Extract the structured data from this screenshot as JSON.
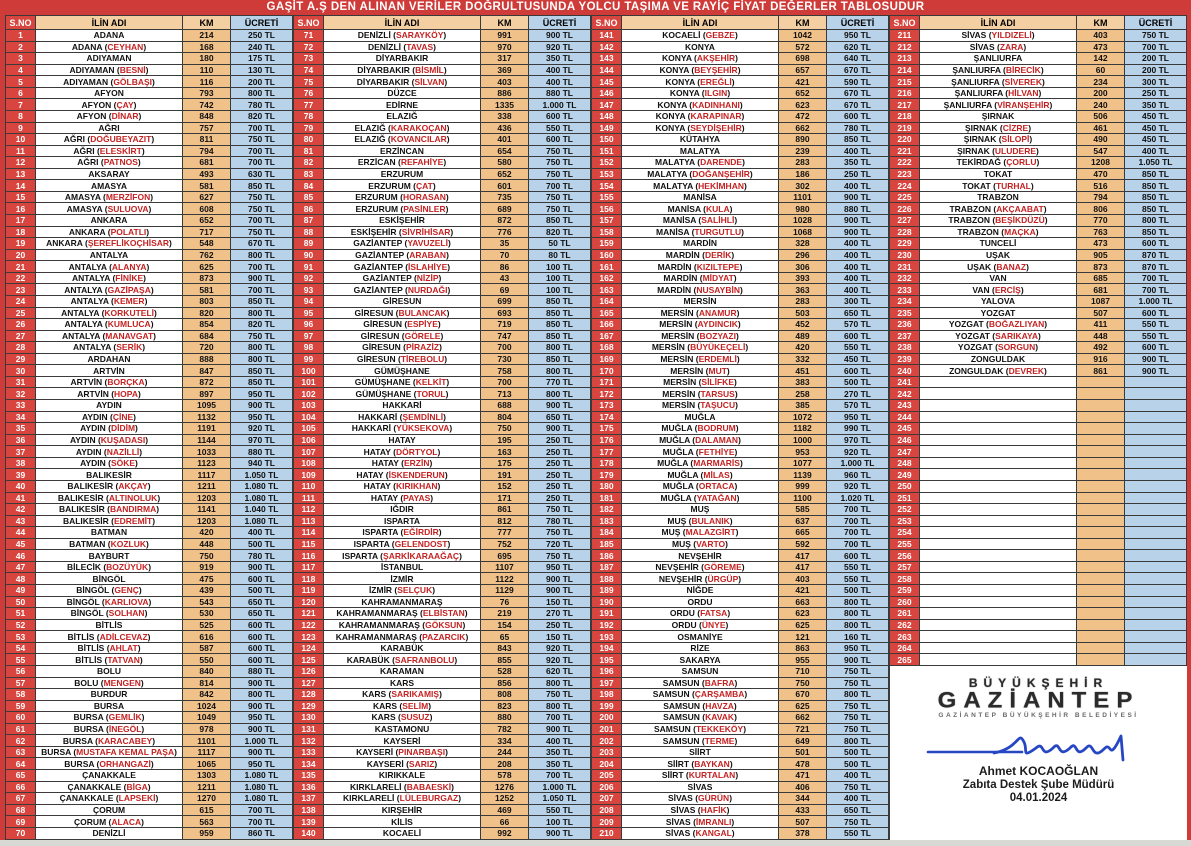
{
  "title": "GAŞİT A.Ş DEN ALINAN VERİLER DOĞRULTUSUNDA YOLCU TAŞIMA VE RAYİÇ FİYAT DEĞERLER TABLOSUDUR",
  "headers": [
    "S.NO",
    "İLİN ADI",
    "KM",
    "ÜCRETİ"
  ],
  "empty_rows": {
    "from": 241,
    "to": 265
  },
  "colors": {
    "frame_red": "#ce3b38",
    "sno_red": "#d8453e",
    "km_peach": "#f0c189",
    "fare_blue": "#b7d2e9",
    "header_peach": "#f3cfa2",
    "district_red": "#c42222",
    "signature_blue": "#2746c4"
  },
  "signature": {
    "stamp_line1": "BÜYÜKŞEHİR",
    "stamp_line2": "GAZİANTEP",
    "stamp_line3": "GAZİANTEP BÜYÜKŞEHİR BELEDİYESİ",
    "name": "Ahmet KOCAOĞLAN",
    "role": "Zabıta Destek Şube Müdürü",
    "date": "04.01.2024"
  },
  "rows": [
    [
      1,
      "ADANA",
      214,
      "250 TL"
    ],
    [
      2,
      "ADANA (CEYHAN)",
      168,
      "240 TL"
    ],
    [
      3,
      "ADIYAMAN",
      180,
      "175 TL"
    ],
    [
      4,
      "ADIYAMAN (BESNİ)",
      110,
      "130 TL"
    ],
    [
      5,
      "ADIYAMAN (GÖLBAŞI)",
      116,
      "200 TL"
    ],
    [
      6,
      "AFYON",
      793,
      "800 TL"
    ],
    [
      7,
      "AFYON (ÇAY)",
      742,
      "780 TL"
    ],
    [
      8,
      "AFYON (DİNAR)",
      848,
      "820 TL"
    ],
    [
      9,
      "AĞRI",
      757,
      "700 TL"
    ],
    [
      10,
      "AĞRI (DOĞUBEYAZIT)",
      811,
      "750 TL"
    ],
    [
      11,
      "AĞRI (ELESKİRT)",
      794,
      "700 TL"
    ],
    [
      12,
      "AĞRI (PATNOS)",
      681,
      "700 TL"
    ],
    [
      13,
      "AKSARAY",
      493,
      "630 TL"
    ],
    [
      14,
      "AMASYA",
      581,
      "850 TL"
    ],
    [
      15,
      "AMASYA (MERZİFON)",
      627,
      "750 TL"
    ],
    [
      16,
      "AMASYA (SULUOVA)",
      608,
      "750 TL"
    ],
    [
      17,
      "ANKARA",
      652,
      "700 TL"
    ],
    [
      18,
      "ANKARA (POLATLI)",
      717,
      "750 TL"
    ],
    [
      19,
      "ANKARA (ŞEREFLİKOÇHİSAR)",
      548,
      "670 TL"
    ],
    [
      20,
      "ANTALYA",
      762,
      "800 TL"
    ],
    [
      21,
      "ANTALYA (ALANYA)",
      625,
      "700 TL"
    ],
    [
      22,
      "ANTALYA (FİNİKE)",
      873,
      "900 TL"
    ],
    [
      23,
      "ANTALYA (GAZİPAŞA)",
      581,
      "700 TL"
    ],
    [
      24,
      "ANTALYA (KEMER)",
      803,
      "850 TL"
    ],
    [
      25,
      "ANTALYA (KORKUTELİ)",
      820,
      "800 TL"
    ],
    [
      26,
      "ANTALYA (KUMLUCA)",
      854,
      "820 TL"
    ],
    [
      27,
      "ANTALYA (MANAVGAT)",
      684,
      "750 TL"
    ],
    [
      28,
      "ANTALYA (SERİK)",
      720,
      "800 TL"
    ],
    [
      29,
      "ARDAHAN",
      888,
      "800 TL"
    ],
    [
      30,
      "ARTVİN",
      847,
      "850 TL"
    ],
    [
      31,
      "ARTVİN (BORÇKA)",
      872,
      "850 TL"
    ],
    [
      32,
      "ARTVİN (HOPA)",
      897,
      "950 TL"
    ],
    [
      33,
      "AYDIN",
      1095,
      "900 TL"
    ],
    [
      34,
      "AYDIN (ÇİNE)",
      1132,
      "950 TL"
    ],
    [
      35,
      "AYDIN (DİDİM)",
      1191,
      "920 TL"
    ],
    [
      36,
      "AYDIN (KUŞADASI)",
      1144,
      "970 TL"
    ],
    [
      37,
      "AYDIN (NAZİLLİ)",
      1033,
      "880 TL"
    ],
    [
      38,
      "AYDIN (SÖKE)",
      1123,
      "940 TL"
    ],
    [
      39,
      "BALIKESİR",
      1117,
      "1.050 TL"
    ],
    [
      40,
      "BALIKESİR (AKÇAY)",
      1211,
      "1.080 TL"
    ],
    [
      41,
      "BALIKESİR (ALTINOLUK)",
      1203,
      "1.080 TL"
    ],
    [
      42,
      "BALIKESİR (BANDIRMA)",
      1141,
      "1.040 TL"
    ],
    [
      43,
      "BALIKESİR (EDREMİT)",
      1203,
      "1.080 TL"
    ],
    [
      44,
      "BATMAN",
      420,
      "400 TL"
    ],
    [
      45,
      "BATMAN (KOZLUK)",
      448,
      "500 TL"
    ],
    [
      46,
      "BAYBURT",
      750,
      "780 TL"
    ],
    [
      47,
      "BİLECİK (BOZÜYÜK)",
      919,
      "900 TL"
    ],
    [
      48,
      "BİNGÖL",
      475,
      "600 TL"
    ],
    [
      49,
      "BİNGÖL (GENÇ)",
      439,
      "500 TL"
    ],
    [
      50,
      "BİNGÖL (KARLIOVA)",
      543,
      "650 TL"
    ],
    [
      51,
      "BİNGÖL (SOLHAN)",
      530,
      "650 TL"
    ],
    [
      52,
      "BİTLİS",
      525,
      "600 TL"
    ],
    [
      53,
      "BİTLİS (ADİLCEVAZ)",
      616,
      "600 TL"
    ],
    [
      54,
      "BİTLİS (AHLAT)",
      587,
      "600 TL"
    ],
    [
      55,
      "BİTLİS (TATVAN)",
      550,
      "600 TL"
    ],
    [
      56,
      "BOLU",
      840,
      "880 TL"
    ],
    [
      57,
      "BOLU (MENGEN)",
      814,
      "900 TL"
    ],
    [
      58,
      "BURDUR",
      842,
      "800 TL"
    ],
    [
      59,
      "BURSA",
      1024,
      "900 TL"
    ],
    [
      60,
      "BURSA (GEMLİK)",
      1049,
      "950 TL"
    ],
    [
      61,
      "BURSA (İNEGÖL)",
      978,
      "900 TL"
    ],
    [
      62,
      "BURSA (KARACABEY)",
      1101,
      "1.000 TL"
    ],
    [
      63,
      "BURSA (MUSTAFA KEMAL PAŞA)",
      1117,
      "900 TL"
    ],
    [
      64,
      "BURSA (ORHANGAZİ)",
      1065,
      "950 TL"
    ],
    [
      65,
      "ÇANAKKALE",
      1303,
      "1.080 TL"
    ],
    [
      66,
      "ÇANAKKALE (BİGA)",
      1211,
      "1.080 TL"
    ],
    [
      67,
      "ÇANAKKALE (LAPSEKİ)",
      1270,
      "1.080 TL"
    ],
    [
      68,
      "ÇORUM",
      615,
      "700 TL"
    ],
    [
      69,
      "ÇORUM (ALACA)",
      563,
      "700 TL"
    ],
    [
      70,
      "DENİZLİ",
      959,
      "860 TL"
    ],
    [
      71,
      "DENİZLİ (SARAYKÖY)",
      991,
      "900 TL"
    ],
    [
      72,
      "DENİZLİ (TAVAS)",
      970,
      "920 TL"
    ],
    [
      73,
      "DİYARBAKIR",
      317,
      "350 TL"
    ],
    [
      74,
      "DİYARBAKIR (BİSMİL)",
      369,
      "400 TL"
    ],
    [
      75,
      "DİYARBAKIR (SİLVAN)",
      403,
      "400 TL"
    ],
    [
      76,
      "DÜZCE",
      886,
      "880 TL"
    ],
    [
      77,
      "EDİRNE",
      1335,
      "1.000 TL"
    ],
    [
      78,
      "ELAZIĞ",
      338,
      "600 TL"
    ],
    [
      79,
      "ELAZIĞ (KARAKOÇAN)",
      436,
      "550 TL"
    ],
    [
      80,
      "ELAZIĞ (KOVANCILAR)",
      401,
      "600 TL"
    ],
    [
      81,
      "ERZİNCAN",
      654,
      "750 TL"
    ],
    [
      82,
      "ERZİCAN (REFAHİYE)",
      580,
      "750 TL"
    ],
    [
      83,
      "ERZURUM",
      652,
      "750 TL"
    ],
    [
      84,
      "ERZURUM (ÇAT)",
      601,
      "700 TL"
    ],
    [
      85,
      "ERZURUM (HORASAN)",
      735,
      "750 TL"
    ],
    [
      86,
      "ERZURUM (PASİNLER)",
      689,
      "750 TL"
    ],
    [
      87,
      "ESKİŞEHİR",
      872,
      "850 TL"
    ],
    [
      88,
      "ESKİŞEHİR (SİVRİHİSAR)",
      776,
      "820 TL"
    ],
    [
      89,
      "GAZİANTEP (YAVUZELİ)",
      35,
      "50 TL"
    ],
    [
      90,
      "GAZİANTEP (ARABAN)",
      70,
      "80 TL"
    ],
    [
      91,
      "GAZİANTEP (İSLAHİYE)",
      86,
      "100 TL"
    ],
    [
      92,
      "GAZİANTEP (NİZİP)",
      43,
      "100 TL"
    ],
    [
      93,
      "GAZİANTEP (NURDAĞI)",
      69,
      "100 TL"
    ],
    [
      94,
      "GİRESUN",
      699,
      "850 TL"
    ],
    [
      95,
      "GİRESUN (BULANCAK)",
      693,
      "850 TL"
    ],
    [
      96,
      "GİRESUN (ESPİYE)",
      719,
      "850 TL"
    ],
    [
      97,
      "GİRESUN (GÖRELE)",
      747,
      "850 TL"
    ],
    [
      98,
      "GİRESUN (PİRAZİZ)",
      700,
      "800 TL"
    ],
    [
      99,
      "GİRESUN (TİREBOLU)",
      730,
      "850 TL"
    ],
    [
      100,
      "GÜMÜŞHANE",
      758,
      "800 TL"
    ],
    [
      101,
      "GÜMÜŞHANE (KELKİT)",
      700,
      "770 TL"
    ],
    [
      102,
      "GÜMÜŞHANE (TORUL)",
      713,
      "800 TL"
    ],
    [
      103,
      "HAKKARİ",
      688,
      "900 TL"
    ],
    [
      104,
      "HAKKARİ (ŞEMDİNLİ)",
      804,
      "650 TL"
    ],
    [
      105,
      "HAKKARİ (YÜKSEKOVA)",
      750,
      "900 TL"
    ],
    [
      106,
      "HATAY",
      195,
      "250 TL"
    ],
    [
      107,
      "HATAY (DÖRTYOL)",
      163,
      "250 TL"
    ],
    [
      108,
      "HATAY (ERZİN)",
      175,
      "250 TL"
    ],
    [
      109,
      "HATAY (İSKENDERUN)",
      191,
      "250 TL"
    ],
    [
      110,
      "HATAY (KIRIKHAN)",
      152,
      "250 TL"
    ],
    [
      111,
      "HATAY (PAYAS)",
      171,
      "250 TL"
    ],
    [
      112,
      "IĞDIR",
      861,
      "750 TL"
    ],
    [
      113,
      "ISPARTA",
      812,
      "780 TL"
    ],
    [
      114,
      "ISPARTA (EĞİRDİR)",
      777,
      "750 TL"
    ],
    [
      115,
      "ISPARTA (GELENDOST)",
      752,
      "720 TL"
    ],
    [
      116,
      "ISPARTA (ŞARKİKARAAĞAÇ)",
      695,
      "750 TL"
    ],
    [
      117,
      "İSTANBUL",
      1107,
      "950 TL"
    ],
    [
      118,
      "İZMİR",
      1122,
      "900 TL"
    ],
    [
      119,
      "İZMİR (SELÇUK)",
      1129,
      "900 TL"
    ],
    [
      120,
      "KAHRAMANMARAŞ",
      76,
      "150 TL"
    ],
    [
      121,
      "KAHRAMANMARAŞ (ELBİSTAN)",
      219,
      "270 TL"
    ],
    [
      122,
      "KAHRAMANMARAŞ (GÖKSUN)",
      154,
      "250 TL"
    ],
    [
      123,
      "KAHRAMANMARAŞ (PAZARCIK)",
      65,
      "150 TL"
    ],
    [
      124,
      "KARABÜK",
      843,
      "920 TL"
    ],
    [
      125,
      "KARABÜK (SAFRANBOLU)",
      855,
      "920 TL"
    ],
    [
      126,
      "KARAMAN",
      528,
      "620 TL"
    ],
    [
      127,
      "KARS",
      856,
      "800 TL"
    ],
    [
      128,
      "KARS (SARIKAMIŞ)",
      808,
      "750 TL"
    ],
    [
      129,
      "KARS (SELİM)",
      823,
      "800 TL"
    ],
    [
      130,
      "KARS (SUSUZ)",
      880,
      "700 TL"
    ],
    [
      131,
      "KASTAMONU",
      782,
      "900 TL"
    ],
    [
      132,
      "KAYSERİ",
      334,
      "400 TL"
    ],
    [
      133,
      "KAYSERİ (PINARBAŞI)",
      244,
      "350 TL"
    ],
    [
      134,
      "KAYSERİ (SARIZ)",
      208,
      "350 TL"
    ],
    [
      135,
      "KIRIKKALE",
      578,
      "700 TL"
    ],
    [
      136,
      "KIRKLARELİ (BABAESKİ)",
      1276,
      "1.000 TL"
    ],
    [
      137,
      "KIRKLARELİ (LÜLEBURGAZ)",
      1252,
      "1.050 TL"
    ],
    [
      138,
      "KIRŞEHİR",
      469,
      "550 TL"
    ],
    [
      139,
      "KİLİS",
      66,
      "100 TL"
    ],
    [
      140,
      "KOCAELİ",
      992,
      "900 TL"
    ],
    [
      141,
      "KOCAELİ (GEBZE)",
      1042,
      "950 TL"
    ],
    [
      142,
      "KONYA",
      572,
      "620 TL"
    ],
    [
      143,
      "KONYA (AKŞEHİR)",
      698,
      "640 TL"
    ],
    [
      144,
      "KONYA (BEYŞEHİR)",
      657,
      "670 TL"
    ],
    [
      145,
      "KONYA (EREĞLİ)",
      421,
      "590 TL"
    ],
    [
      146,
      "KONYA (ILGIN)",
      652,
      "670 TL"
    ],
    [
      147,
      "KONYA (KADINHANI)",
      623,
      "670 TL"
    ],
    [
      148,
      "KONYA (KARAPINAR)",
      472,
      "600 TL"
    ],
    [
      149,
      "KONYA (SEYDİŞEHİR)",
      662,
      "780 TL"
    ],
    [
      150,
      "KÜTAHYA",
      890,
      "850 TL"
    ],
    [
      151,
      "MALATYA",
      239,
      "400 TL"
    ],
    [
      152,
      "MALATYA (DARENDE)",
      283,
      "350 TL"
    ],
    [
      153,
      "MALATYA (DOĞANŞEHİR)",
      186,
      "250 TL"
    ],
    [
      154,
      "MALATYA (HEKİMHAN)",
      302,
      "400 TL"
    ],
    [
      155,
      "MANİSA",
      1101,
      "900 TL"
    ],
    [
      156,
      "MANİSA (KULA)",
      980,
      "880 TL"
    ],
    [
      157,
      "MANİSA (SALİHLİ)",
      1028,
      "900 TL"
    ],
    [
      158,
      "MANİSA (TURGUTLU)",
      1068,
      "900 TL"
    ],
    [
      159,
      "MARDİN",
      328,
      "400 TL"
    ],
    [
      160,
      "MARDİN (DERİK)",
      296,
      "400 TL"
    ],
    [
      161,
      "MARDİN (KIZILTEPE)",
      306,
      "400 TL"
    ],
    [
      162,
      "MARDİN (MİDYAT)",
      393,
      "400 TL"
    ],
    [
      163,
      "MARDİN (NUSAYBİN)",
      363,
      "400 TL"
    ],
    [
      164,
      "MERSİN",
      283,
      "300 TL"
    ],
    [
      165,
      "MERSİN (ANAMUR)",
      503,
      "650 TL"
    ],
    [
      166,
      "MERSİN (AYDINCIK)",
      452,
      "570 TL"
    ],
    [
      167,
      "MERSİN (BOZYAZI)",
      489,
      "600 TL"
    ],
    [
      168,
      "MERSİN (BÜYÜKEÇELİ)",
      420,
      "550 TL"
    ],
    [
      169,
      "MERSİN (ERDEMLİ)",
      332,
      "450 TL"
    ],
    [
      170,
      "MERSİN (MUT)",
      451,
      "600 TL"
    ],
    [
      171,
      "MERSİN (SİLİFKE)",
      383,
      "500 TL"
    ],
    [
      172,
      "MERSİN (TARSUS)",
      258,
      "270 TL"
    ],
    [
      173,
      "MERSİN (TAŞUCU)",
      385,
      "570 TL"
    ],
    [
      174,
      "MUĞLA",
      1072,
      "950 TL"
    ],
    [
      175,
      "MUĞLA (BODRUM)",
      1182,
      "990 TL"
    ],
    [
      176,
      "MUĞLA (DALAMAN)",
      1000,
      "970 TL"
    ],
    [
      177,
      "MUĞLA (FETHİYE)",
      953,
      "920 TL"
    ],
    [
      178,
      "MUĞLA (MARMARİS)",
      1077,
      "1.000 TL"
    ],
    [
      179,
      "MUĞLA (MİLAS)",
      1139,
      "960 TL"
    ],
    [
      180,
      "MUĞLA (ORTACA)",
      999,
      "920 TL"
    ],
    [
      181,
      "MUĞLA (YATAĞAN)",
      1100,
      "1.020 TL"
    ],
    [
      182,
      "MUŞ",
      585,
      "700 TL"
    ],
    [
      183,
      "MUŞ (BULANIK)",
      637,
      "700 TL"
    ],
    [
      184,
      "MUŞ (MALAZGİRT)",
      665,
      "700 TL"
    ],
    [
      185,
      "MUŞ (VARTO)",
      592,
      "700 TL"
    ],
    [
      186,
      "NEVŞEHİR",
      417,
      "600 TL"
    ],
    [
      187,
      "NEVŞEHİR (GÖREME)",
      417,
      "550 TL"
    ],
    [
      188,
      "NEVŞEHİR (ÜRGÜP)",
      403,
      "550 TL"
    ],
    [
      189,
      "NİĞDE",
      421,
      "500 TL"
    ],
    [
      190,
      "ORDU",
      663,
      "800 TL"
    ],
    [
      191,
      "ORDU (FATSA)",
      623,
      "800 TL"
    ],
    [
      192,
      "ORDU (ÜNYE)",
      625,
      "800 TL"
    ],
    [
      193,
      "OSMANİYE",
      121,
      "160 TL"
    ],
    [
      194,
      "RİZE",
      863,
      "950 TL"
    ],
    [
      195,
      "SAKARYA",
      955,
      "900 TL"
    ],
    [
      196,
      "SAMSUN",
      710,
      "750 TL"
    ],
    [
      197,
      "SAMSUN (BAFRA)",
      750,
      "750 TL"
    ],
    [
      198,
      "SAMSUN (ÇARŞAMBA)",
      670,
      "800 TL"
    ],
    [
      199,
      "SAMSUN (HAVZA)",
      625,
      "750 TL"
    ],
    [
      200,
      "SAMSUN (KAVAK)",
      662,
      "750 TL"
    ],
    [
      201,
      "SAMSUN (TEKKEKÖY)",
      721,
      "750 TL"
    ],
    [
      202,
      "SAMSUN (TERME)",
      649,
      "800 TL"
    ],
    [
      203,
      "SİİRT",
      501,
      "500 TL"
    ],
    [
      204,
      "SİİRT (BAYKAN)",
      478,
      "500 TL"
    ],
    [
      205,
      "SİİRT (KURTALAN)",
      471,
      "400 TL"
    ],
    [
      206,
      "SİVAS",
      406,
      "750 TL"
    ],
    [
      207,
      "SİVAS (GÜRÜN)",
      344,
      "400 TL"
    ],
    [
      208,
      "SİVAS (HAFİK)",
      433,
      "650 TL"
    ],
    [
      209,
      "SİVAS (İMRANLI)",
      507,
      "750 TL"
    ],
    [
      210,
      "SİVAS (KANGAL)",
      378,
      "550 TL"
    ],
    [
      211,
      "SİVAS (YILDIZELİ)",
      403,
      "750 TL"
    ],
    [
      212,
      "SİVAS (ZARA)",
      473,
      "700 TL"
    ],
    [
      213,
      "ŞANLIURFA",
      142,
      "200 TL"
    ],
    [
      214,
      "ŞANLIURFA (BİRECİK)",
      60,
      "200 TL"
    ],
    [
      215,
      "ŞANLIURFA (SİVEREK)",
      234,
      "300 TL"
    ],
    [
      216,
      "ŞANLIURFA (HİLVAN)",
      200,
      "250 TL"
    ],
    [
      217,
      "ŞANLIURFA (VİRANŞEHİR)",
      240,
      "350 TL"
    ],
    [
      218,
      "ŞIRNAK",
      506,
      "450 TL"
    ],
    [
      219,
      "ŞIRNAK (CİZRE)",
      461,
      "450 TL"
    ],
    [
      220,
      "ŞIRNAK (SİLOPİ)",
      490,
      "450 TL"
    ],
    [
      221,
      "ŞIRNAK (ULUDERE)",
      547,
      "400 TL"
    ],
    [
      222,
      "TEKİRDAĞ (ÇORLU)",
      1208,
      "1.050 TL"
    ],
    [
      223,
      "TOKAT",
      470,
      "850 TL"
    ],
    [
      224,
      "TOKAT (TURHAL)",
      516,
      "850 TL"
    ],
    [
      225,
      "TRABZON",
      794,
      "850 TL"
    ],
    [
      226,
      "TRABZON (AKÇAABAT)",
      806,
      "850 TL"
    ],
    [
      227,
      "TRABZON (BEŞİKDÜZÜ)",
      770,
      "800 TL"
    ],
    [
      228,
      "TRABZON (MAÇKA)",
      763,
      "850 TL"
    ],
    [
      229,
      "TUNCELİ",
      473,
      "600 TL"
    ],
    [
      230,
      "UŞAK",
      905,
      "870 TL"
    ],
    [
      231,
      "UŞAK (BANAZ)",
      873,
      "870 TL"
    ],
    [
      232,
      "VAN",
      685,
      "700 TL"
    ],
    [
      233,
      "VAN (ERCİŞ)",
      681,
      "700 TL"
    ],
    [
      234,
      "YALOVA",
      1087,
      "1.000 TL"
    ],
    [
      235,
      "YOZGAT",
      507,
      "600 TL"
    ],
    [
      236,
      "YOZGAT (BOĞAZLIYAN)",
      411,
      "550 TL"
    ],
    [
      237,
      "YOZGAT (SARIKAYA)",
      448,
      "550 TL"
    ],
    [
      238,
      "YOZGAT (SORGUN)",
      492,
      "600 TL"
    ],
    [
      239,
      "ZONGULDAK",
      916,
      "900 TL"
    ],
    [
      240,
      "ZONGULDAK (DEVREK)",
      861,
      "900 TL"
    ]
  ]
}
